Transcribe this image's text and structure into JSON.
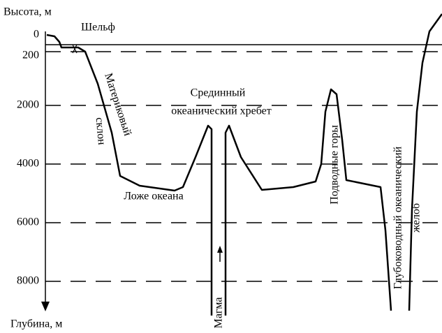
{
  "axis": {
    "top_label": "Высота, м",
    "bottom_label": "Глубина, м",
    "ticks": [
      0,
      200,
      2000,
      4000,
      6000,
      8000
    ]
  },
  "labels": {
    "shelf": "Шельф",
    "slope_1": "Материковый",
    "slope_2": "склон",
    "ridge_1": "Срединный",
    "ridge_2": "океанический хребет",
    "floor": "Ложе океана",
    "seamounts": "Подводные горы",
    "trench_1": "Глубоководный океанический",
    "trench_2": "желоб",
    "magma": "Магма"
  }
}
